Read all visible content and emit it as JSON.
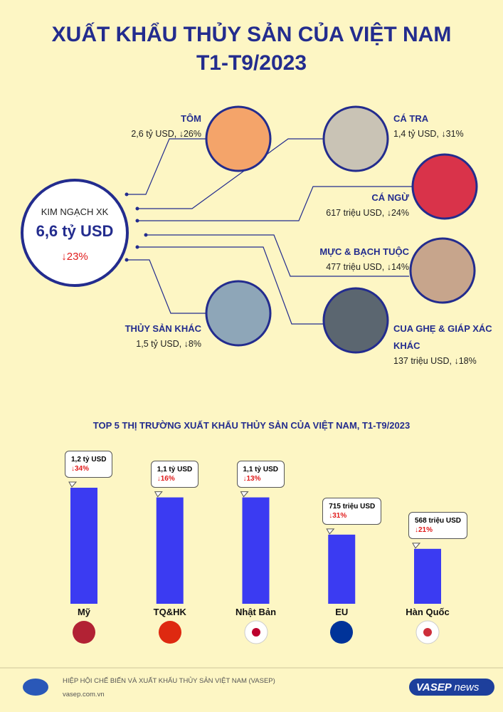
{
  "header": {
    "title_line1": "XUẤT KHẨU THỦY SẢN CỦA VIỆT NAM",
    "title_line2": "T1-T9/2023"
  },
  "overview": {
    "label": "KIM NGẠCH XK",
    "value": "6,6 tỷ USD",
    "change": "↓23%"
  },
  "products": [
    {
      "name": "TÔM",
      "value": "2,6 tỷ USD, ↓26%"
    },
    {
      "name": "CÁ TRA",
      "value": "1,4 tỷ USD, ↓31%"
    },
    {
      "name": "CÁ NGỪ",
      "value": "617 triệu USD, ↓24%"
    },
    {
      "name": "MỰC & BẠCH TUỘC",
      "value": "477 triệu USD, ↓14%"
    },
    {
      "name": "THỦY SẢN KHÁC",
      "value": "1,5 tỷ USD, ↓8%"
    },
    {
      "name": "CUA GHẸ & GIÁP XÁC KHÁC",
      "value": "137 triệu USD, ↓18%"
    }
  ],
  "chart_data": {
    "type": "bar",
    "title": "TOP 5 THỊ TRƯỜNG XUẤT KHẨU THỦY SẢN CỦA VIỆT NAM, T1-T9/2023",
    "categories": [
      "Mỹ",
      "TQ&HK",
      "Nhật Bản",
      "EU",
      "Hàn Quốc"
    ],
    "values": [
      1200,
      1100,
      1100,
      715,
      568
    ],
    "value_labels": [
      "1,2 tỷ USD",
      "1,1 tỷ USD",
      "1,1 tỷ USD",
      "715 triệu USD",
      "568 triệu USD"
    ],
    "changes": [
      "↓34%",
      "↓16%",
      "↓13%",
      "↓31%",
      "↓21%"
    ],
    "color": "#3b3bf2"
  },
  "footer": {
    "org": "HIỆP HỘI CHẾ BIẾN VÀ XUẤT KHẨU THỦY SẢN VIỆT NAM (VASEP)",
    "site": "vasep.com.vn",
    "logo": "VASEP",
    "logo2": "news"
  }
}
